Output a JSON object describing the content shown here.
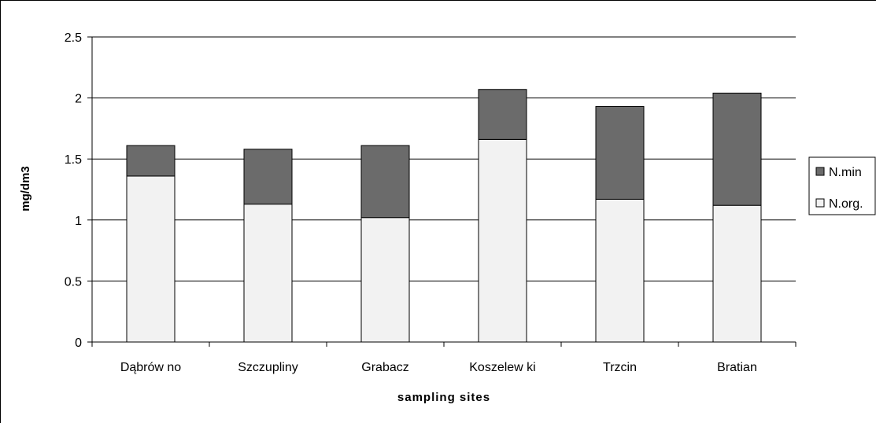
{
  "chart_data": {
    "type": "bar",
    "stacked": true,
    "categories": [
      "Dąbrów no",
      "Szczupliny",
      "Grabacz",
      "Koszelew ki",
      "Trzcin",
      "Bratian"
    ],
    "series": [
      {
        "name": "N.org.",
        "values": [
          1.36,
          1.13,
          1.02,
          1.66,
          1.17,
          1.12
        ],
        "color": "#f2f2f2"
      },
      {
        "name": "N.min",
        "values": [
          0.25,
          0.45,
          0.59,
          0.41,
          0.76,
          0.92
        ],
        "color": "#6b6b6b"
      }
    ],
    "xlabel": "sampling sites",
    "ylabel": "mg/dm3",
    "ylim": [
      0,
      2.5
    ],
    "yticks": [
      "0",
      "0.5",
      "1",
      "1.5",
      "2",
      "2.5"
    ],
    "grid": true,
    "legend": "right"
  }
}
